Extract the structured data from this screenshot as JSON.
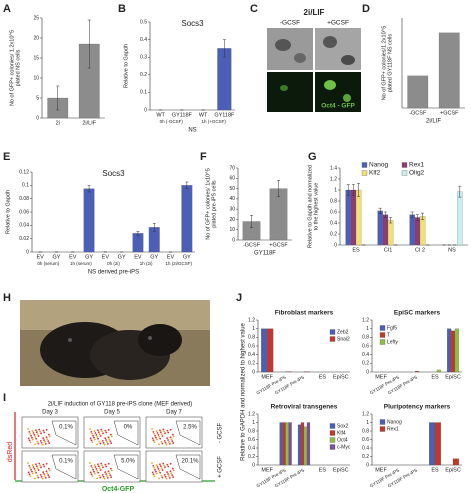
{
  "panels": {
    "letters": [
      "A",
      "B",
      "C",
      "D",
      "E",
      "F",
      "G",
      "H",
      "I",
      "J"
    ],
    "c": {
      "title": "2i/LIF",
      "minus": "-GCSF",
      "plus": "+GCSF",
      "caption": "Oct4 - GFP"
    },
    "i": {
      "title": "2i/LIF induction of GY118 pre-iPS clone (MEF derived)",
      "days": [
        "Day 3",
        "Day 5",
        "Day 7"
      ],
      "rows": [
        "- GCSF",
        "+ GCSF"
      ],
      "percent": [
        [
          "0.1%",
          "0%",
          "2.5%"
        ],
        [
          "0.1%",
          "5.0%",
          "20.1%"
        ]
      ],
      "ylabel": "dsRed",
      "xlabel": "Oct4-GFP"
    },
    "j": {
      "ylabel": "Relative to GAPDH and normalized to highest value"
    }
  },
  "chart_data": [
    {
      "type": "bar",
      "ylabel": [
        "No of GFP+ colonies/ 1.2x10^5",
        "plated NS cells"
      ],
      "categories": [
        "2i",
        "2i/LIF"
      ],
      "values": [
        5,
        18.5
      ],
      "errors": [
        3,
        6
      ],
      "color": "#8c8c8c",
      "ylim": [
        0,
        25
      ],
      "yticks": [
        0,
        5,
        10,
        15,
        20,
        25
      ]
    },
    {
      "type": "bar",
      "title": "Socs3",
      "ylabel": "Relative to Gapdh",
      "categories": [
        "WT",
        "GY118F",
        "WT",
        "GY118F"
      ],
      "groups": [
        "0h (-GCSF)",
        "1h (+GCSF)"
      ],
      "xlabel": "NS",
      "values": [
        0,
        0,
        0,
        0.35
      ],
      "errors": [
        0,
        0,
        0,
        0.05
      ],
      "color": "#4a5fb5",
      "ylim": [
        0,
        0.5
      ],
      "yticks": [
        0,
        0.1,
        0.2,
        0.3,
        0.4,
        0.5
      ]
    },
    {
      "type": "bar",
      "ylabel": [
        "No of GFP+ colonies/1.2x10^5",
        "plated GY118F NS cells"
      ],
      "categories": [
        "-GCSF",
        "+GCSF"
      ],
      "xlabel": "2i/LIF",
      "values": [
        50,
        117
      ],
      "color": "#8c8c8c",
      "ylim": [
        0,
        140
      ]
    },
    {
      "type": "bar",
      "title": "Socs3",
      "ylabel": "Relative to Gapdh",
      "categories": [
        "EV",
        "GY",
        "EV",
        "GY",
        "EV",
        "GY",
        "EV",
        "GY",
        "EV",
        "GY"
      ],
      "groups": [
        "0h (serum)",
        "1h (serum)",
        "0h (2i)",
        "1h (2i)",
        "1h (2i/GCSF)"
      ],
      "xlabel": "NS derived pre-iPS",
      "values": [
        0,
        0,
        0,
        0.095,
        0,
        0,
        0.028,
        0.037,
        0,
        0.1
      ],
      "errors": [
        0,
        0,
        0,
        0.005,
        0,
        0,
        0.003,
        0.006,
        0,
        0.005
      ],
      "color": "#4a5fb5",
      "ylim": [
        0,
        0.12
      ],
      "yticks": [
        0,
        0.02,
        0.04,
        0.06,
        0.08,
        0.1,
        0.12
      ]
    },
    {
      "type": "bar",
      "ylabel": [
        "No of GFP+ colonies/ 1x10^5",
        "plated pre-iPS cells"
      ],
      "categories": [
        "-GCSF",
        "+GCSF"
      ],
      "xlabel": "GY118F",
      "values": [
        18,
        50
      ],
      "errors": [
        6,
        8
      ],
      "color": "#8c8c8c",
      "ylim": [
        0,
        70
      ],
      "yticks": [
        0,
        10,
        20,
        30,
        40,
        50,
        60,
        70
      ]
    },
    {
      "type": "bar",
      "ylabel": [
        "Relative to Gapdh and normalized",
        "to the highest value"
      ],
      "categories": [
        "ES",
        "CI1",
        "CI 2",
        "NS"
      ],
      "legend": "top",
      "ylim": [
        0,
        1.4
      ],
      "yticks": [
        0,
        0.2,
        0.4,
        0.6,
        0.8,
        1,
        1.2,
        1.4
      ],
      "series": [
        {
          "name": "Nanog",
          "color": "#4a5fb5",
          "values": [
            1,
            0.62,
            0.55,
            0
          ],
          "errors": [
            0.1,
            0.05,
            0.05,
            0
          ]
        },
        {
          "name": "Rex1",
          "color": "#8b3a7a",
          "values": [
            1,
            0.55,
            0.5,
            0
          ],
          "errors": [
            0.1,
            0.05,
            0.05,
            0
          ]
        },
        {
          "name": "Klf2",
          "color": "#f0e070",
          "values": [
            1,
            0.45,
            0.52,
            0
          ],
          "errors": [
            0.12,
            0.05,
            0.06,
            0
          ]
        },
        {
          "name": "Olig2",
          "color": "#c8eef0",
          "values": [
            0,
            0,
            0,
            0.97
          ],
          "errors": [
            0,
            0,
            0,
            0.1
          ]
        }
      ]
    },
    {
      "type": "bar",
      "title": "Fibroblast markers",
      "categories": [
        "MEF",
        "GY118F Pre-iPS",
        "GY118F Pre-iPS",
        "ES",
        "EpiSC"
      ],
      "legend": "right",
      "ylim": [
        0,
        1.2
      ],
      "yticks": [
        0,
        0.2,
        0.4,
        0.6,
        0.8,
        1,
        1.2
      ],
      "series": [
        {
          "name": "Zeb2",
          "color": "#4a5fb5",
          "values": [
            1,
            0,
            0,
            0,
            0
          ]
        },
        {
          "name": "Snai2",
          "color": "#c0392b",
          "values": [
            1,
            0.01,
            0.01,
            0,
            0
          ]
        }
      ]
    },
    {
      "type": "bar",
      "title": "EpiSC markers",
      "categories": [
        "MEF",
        "GY118F Pre-iPS",
        "GY118F Pre-iPS",
        "ES",
        "EpiSC"
      ],
      "legend": "left",
      "ylim": [
        0,
        1.2
      ],
      "yticks": [
        0,
        0.2,
        0.4,
        0.6,
        0.8,
        1,
        1.2
      ],
      "series": [
        {
          "name": "Fgf5",
          "color": "#4a5fb5",
          "values": [
            0,
            0,
            0,
            0,
            1
          ]
        },
        {
          "name": "T",
          "color": "#c0392b",
          "values": [
            0,
            0,
            0.02,
            0,
            0.95
          ]
        },
        {
          "name": "Lefty",
          "color": "#8fbf40",
          "values": [
            0,
            0,
            0,
            0.05,
            1
          ]
        }
      ]
    },
    {
      "type": "bar",
      "title": "Retroviral transgenes",
      "categories": [
        "MEF",
        "GY118F Pre-iPS",
        "GY118F Pre-iPS",
        "ES",
        "EpiSC"
      ],
      "legend": "right",
      "ylim": [
        0,
        1.2
      ],
      "yticks": [
        0,
        0.2,
        0.4,
        0.6,
        0.8,
        1,
        1.2
      ],
      "series": [
        {
          "name": "Sox2",
          "color": "#4a5fb5",
          "values": [
            0,
            1,
            0.95,
            0,
            0
          ]
        },
        {
          "name": "Klf4",
          "color": "#c0392b",
          "values": [
            0,
            1,
            1,
            0,
            0
          ]
        },
        {
          "name": "Oct4",
          "color": "#8fbf40",
          "values": [
            0,
            1,
            0.9,
            0,
            0
          ]
        },
        {
          "name": "c-Myc",
          "color": "#7b4fa0",
          "values": [
            0,
            1,
            1,
            0,
            0
          ]
        }
      ]
    },
    {
      "type": "bar",
      "title": "Pluripotency markers",
      "categories": [
        "MEF",
        "GY118F Pre-iPS",
        "GY118F Pre-iPS",
        "ES",
        "EpiSC"
      ],
      "legend": "left",
      "ylim": [
        0,
        1.2
      ],
      "yticks": [
        0,
        0.2,
        0.4,
        0.6,
        0.8,
        1,
        1.2
      ],
      "series": [
        {
          "name": "Nanog",
          "color": "#4a5fb5",
          "values": [
            0,
            0,
            0,
            1,
            0
          ]
        },
        {
          "name": "Rex1",
          "color": "#c0392b",
          "values": [
            0,
            0,
            0,
            1,
            0.15
          ]
        }
      ]
    }
  ]
}
